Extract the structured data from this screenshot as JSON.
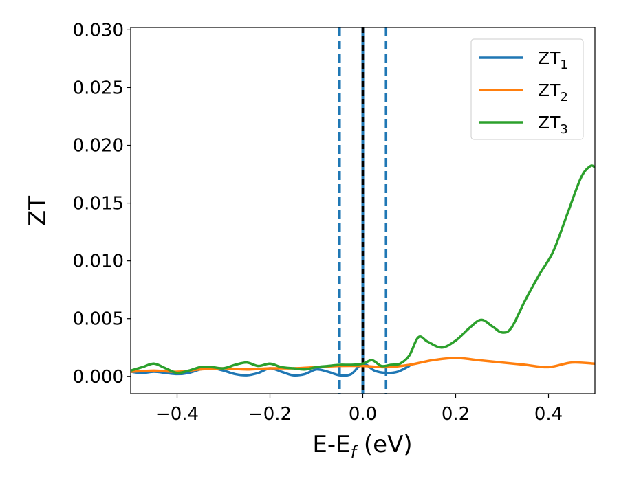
{
  "chart_data": {
    "type": "line",
    "xlabel": "E-E",
    "xlabel_sub": "f",
    "xlabel_suffix": " (eV)",
    "ylabel": "ZT",
    "xlim": [
      -0.5,
      0.5
    ],
    "ylim": [
      -0.0015,
      0.0302
    ],
    "xticks": [
      -0.4,
      -0.2,
      0.0,
      0.2,
      0.4
    ],
    "xtick_labels": [
      "−0.4",
      "−0.2",
      "0.0",
      "0.2",
      "0.4"
    ],
    "yticks": [
      0.0,
      0.005,
      0.01,
      0.015,
      0.02,
      0.025,
      0.03
    ],
    "ytick_labels": [
      "0.000",
      "0.005",
      "0.010",
      "0.015",
      "0.020",
      "0.025",
      "0.030"
    ],
    "grid": false,
    "legend_position": "top-right",
    "vlines": [
      {
        "x": -0.05,
        "color": "#1f77b4",
        "style": "dashed"
      },
      {
        "x": 0.0,
        "color": "#1f77b4",
        "style": "solid"
      },
      {
        "x": 0.0,
        "color": "#000000",
        "style": "dashed"
      },
      {
        "x": 0.05,
        "color": "#1f77b4",
        "style": "dashed"
      }
    ],
    "series": [
      {
        "name": "ZT",
        "name_sub": "1",
        "color": "#1f77b4",
        "x": [
          -0.5,
          -0.475,
          -0.45,
          -0.425,
          -0.4,
          -0.375,
          -0.35,
          -0.325,
          -0.3,
          -0.275,
          -0.25,
          -0.225,
          -0.2,
          -0.175,
          -0.15,
          -0.125,
          -0.1,
          -0.075,
          -0.05,
          -0.025,
          0.0,
          0.025,
          0.05,
          0.075,
          0.1
        ],
        "y": [
          0.0004,
          0.0003,
          0.0004,
          0.0003,
          0.0002,
          0.0003,
          0.0006,
          0.0007,
          0.0005,
          0.0002,
          0.0001,
          0.0003,
          0.0007,
          0.0004,
          0.0001,
          0.0002,
          0.0006,
          0.0004,
          0.0001,
          0.0002,
          0.0011,
          0.0005,
          0.0003,
          0.0004,
          0.0009
        ]
      },
      {
        "name": "ZT",
        "name_sub": "2",
        "color": "#ff7f0e",
        "x": [
          -0.5,
          -0.45,
          -0.4,
          -0.35,
          -0.3,
          -0.25,
          -0.2,
          -0.15,
          -0.1,
          -0.05,
          0.0,
          0.05,
          0.1,
          0.15,
          0.2,
          0.25,
          0.3,
          0.35,
          0.4,
          0.45,
          0.5
        ],
        "y": [
          0.0004,
          0.0005,
          0.0004,
          0.0006,
          0.0007,
          0.0006,
          0.0007,
          0.0007,
          0.0008,
          0.0009,
          0.0009,
          0.0008,
          0.001,
          0.0014,
          0.0016,
          0.0014,
          0.0012,
          0.001,
          0.0008,
          0.0012,
          0.0011
        ]
      },
      {
        "name": "ZT",
        "name_sub": "3",
        "color": "#2ca02c",
        "x": [
          -0.5,
          -0.475,
          -0.45,
          -0.425,
          -0.4,
          -0.375,
          -0.35,
          -0.325,
          -0.3,
          -0.275,
          -0.25,
          -0.225,
          -0.2,
          -0.175,
          -0.15,
          -0.125,
          -0.1,
          -0.075,
          -0.05,
          -0.025,
          0.0,
          0.02,
          0.04,
          0.06,
          0.08,
          0.1,
          0.12,
          0.14,
          0.17,
          0.2,
          0.23,
          0.255,
          0.28,
          0.3,
          0.32,
          0.35,
          0.38,
          0.41,
          0.44,
          0.47,
          0.49,
          0.5
        ],
        "y": [
          0.0005,
          0.0008,
          0.0011,
          0.0007,
          0.0003,
          0.0005,
          0.0008,
          0.0008,
          0.0007,
          0.001,
          0.0012,
          0.0009,
          0.0011,
          0.0008,
          0.0007,
          0.0006,
          0.0008,
          0.0009,
          0.001,
          0.001,
          0.0011,
          0.0014,
          0.0009,
          0.001,
          0.0011,
          0.0018,
          0.0034,
          0.003,
          0.0025,
          0.0031,
          0.0042,
          0.0049,
          0.0043,
          0.0038,
          0.0042,
          0.0066,
          0.0088,
          0.0108,
          0.014,
          0.0172,
          0.0182,
          0.0181
        ]
      }
    ]
  }
}
